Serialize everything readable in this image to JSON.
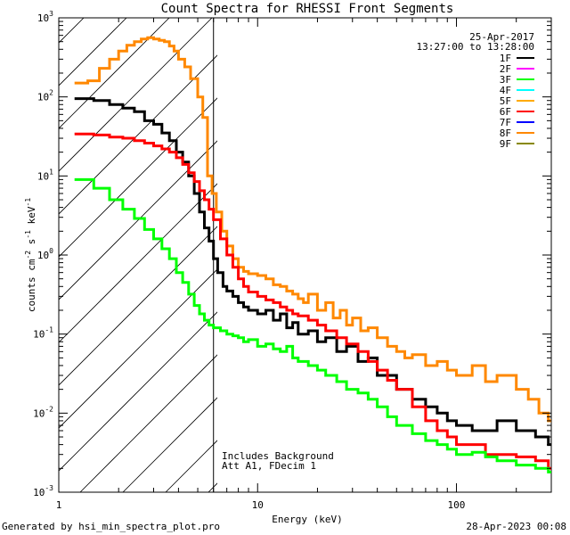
{
  "chart_data": {
    "type": "line",
    "title": "Count Spectra for RHESSI Front Segments",
    "xlabel": "Energy (keV)",
    "ylabel_main": "counts cm",
    "ylabel_parts": [
      "counts cm",
      "-2",
      " s",
      "-1",
      " keV",
      "-1"
    ],
    "xscale": "log",
    "yscale": "log",
    "xlim": [
      1,
      300
    ],
    "ylim": [
      0.001,
      1000
    ],
    "x_ticks": [
      {
        "value": 10,
        "label": "10"
      },
      {
        "value": 100,
        "label": "100"
      },
      {
        "value": 1,
        "label": "1"
      }
    ],
    "y_ticks": [
      {
        "value": 1000,
        "base": "10",
        "exp": "3"
      },
      {
        "value": 100,
        "base": "10",
        "exp": "2"
      },
      {
        "value": 10,
        "base": "10",
        "exp": "1"
      },
      {
        "value": 1,
        "base": "10",
        "exp": "0"
      },
      {
        "value": 0.1,
        "base": "10",
        "exp": "-1"
      },
      {
        "value": 0.01,
        "base": "10",
        "exp": "-2"
      },
      {
        "value": 0.001,
        "base": "10",
        "exp": "-3"
      }
    ],
    "attenuator_edge_kev": 6,
    "legend": {
      "date": "25-Apr-2017",
      "time_range": "13:27:00 to 13:28:00",
      "entries": [
        {
          "label": "1F",
          "color": "#000000"
        },
        {
          "label": "2F",
          "color": "#ff00ff"
        },
        {
          "label": "3F",
          "color": "#00ff00"
        },
        {
          "label": "4F",
          "color": "#00ffff"
        },
        {
          "label": "5F",
          "color": "#ffaa00"
        },
        {
          "label": "6F",
          "color": "#ff0000"
        },
        {
          "label": "7F",
          "color": "#0000ff"
        },
        {
          "label": "8F",
          "color": "#ff8800"
        },
        {
          "label": "9F",
          "color": "#888800"
        }
      ]
    },
    "annotations": [
      "Includes Background",
      "Att A1, FDecim 1"
    ],
    "series": [
      {
        "name": "8F",
        "color": "#ff8800",
        "x": [
          1.2,
          1.4,
          1.6,
          1.8,
          2.0,
          2.2,
          2.4,
          2.6,
          2.8,
          3.0,
          3.2,
          3.4,
          3.6,
          3.8,
          4.0,
          4.3,
          4.6,
          5.0,
          5.3,
          5.6,
          5.9,
          6.2,
          6.6,
          7.0,
          7.5,
          8.0,
          8.5,
          9,
          10,
          11,
          12,
          13,
          14,
          15,
          16,
          17,
          18,
          20,
          22,
          24,
          26,
          28,
          30,
          33,
          36,
          40,
          45,
          50,
          55,
          60,
          70,
          80,
          90,
          100,
          120,
          140,
          160,
          180,
          200,
          230,
          260,
          290
        ],
        "y": [
          150,
          160,
          230,
          300,
          380,
          450,
          500,
          540,
          560,
          540,
          520,
          500,
          440,
          380,
          300,
          240,
          170,
          100,
          55,
          10,
          6,
          3.5,
          2.0,
          1.3,
          0.9,
          0.7,
          0.62,
          0.58,
          0.55,
          0.5,
          0.42,
          0.4,
          0.35,
          0.32,
          0.28,
          0.25,
          0.32,
          0.2,
          0.25,
          0.16,
          0.2,
          0.13,
          0.16,
          0.11,
          0.12,
          0.09,
          0.07,
          0.06,
          0.05,
          0.055,
          0.04,
          0.045,
          0.035,
          0.03,
          0.04,
          0.025,
          0.03,
          0.03,
          0.02,
          0.015,
          0.01,
          0.008
        ]
      },
      {
        "name": "1F",
        "color": "#000000",
        "x": [
          1.2,
          1.5,
          1.8,
          2.1,
          2.4,
          2.7,
          3.0,
          3.3,
          3.6,
          3.9,
          4.2,
          4.5,
          4.8,
          5.1,
          5.4,
          5.7,
          6.0,
          6.3,
          6.7,
          7.0,
          7.5,
          8.0,
          8.5,
          9,
          10,
          11,
          12,
          13,
          14,
          15,
          16,
          18,
          20,
          22,
          25,
          28,
          32,
          36,
          40,
          45,
          50,
          60,
          70,
          80,
          90,
          100,
          120,
          140,
          160,
          200,
          250,
          290
        ],
        "y": [
          95,
          90,
          80,
          72,
          65,
          50,
          45,
          35,
          28,
          20,
          15,
          10,
          6,
          3.5,
          2.2,
          1.5,
          0.9,
          0.6,
          0.4,
          0.35,
          0.3,
          0.25,
          0.22,
          0.2,
          0.18,
          0.2,
          0.15,
          0.18,
          0.12,
          0.14,
          0.1,
          0.11,
          0.08,
          0.09,
          0.06,
          0.07,
          0.045,
          0.05,
          0.03,
          0.03,
          0.02,
          0.015,
          0.012,
          0.01,
          0.008,
          0.007,
          0.006,
          0.006,
          0.008,
          0.006,
          0.005,
          0.004
        ]
      },
      {
        "name": "6F",
        "color": "#ff0000",
        "x": [
          1.2,
          1.5,
          1.8,
          2.1,
          2.4,
          2.7,
          3.0,
          3.3,
          3.6,
          3.9,
          4.2,
          4.5,
          4.8,
          5.1,
          5.4,
          5.7,
          6.0,
          6.5,
          7.0,
          7.5,
          8.0,
          8.5,
          9,
          10,
          11,
          12,
          13,
          14,
          15,
          16,
          18,
          20,
          22,
          25,
          28,
          32,
          36,
          40,
          45,
          50,
          60,
          70,
          80,
          90,
          100,
          120,
          140,
          160,
          200,
          250,
          290
        ],
        "y": [
          34,
          33,
          31,
          30,
          28,
          26,
          24,
          22,
          20,
          17,
          14,
          11,
          8.5,
          6.5,
          5,
          3.8,
          2.8,
          1.6,
          1.0,
          0.7,
          0.5,
          0.4,
          0.34,
          0.3,
          0.27,
          0.25,
          0.22,
          0.2,
          0.18,
          0.17,
          0.15,
          0.13,
          0.11,
          0.09,
          0.075,
          0.06,
          0.045,
          0.035,
          0.026,
          0.02,
          0.012,
          0.008,
          0.006,
          0.005,
          0.004,
          0.004,
          0.003,
          0.003,
          0.0028,
          0.0025,
          0.002
        ]
      },
      {
        "name": "3F",
        "color": "#00ff00",
        "x": [
          1.2,
          1.5,
          1.8,
          2.1,
          2.4,
          2.7,
          3.0,
          3.3,
          3.6,
          3.9,
          4.2,
          4.5,
          4.8,
          5.1,
          5.4,
          5.7,
          6.0,
          6.5,
          7.0,
          7.5,
          8.0,
          8.5,
          9,
          10,
          11,
          12,
          13,
          14,
          15,
          16,
          18,
          20,
          22,
          25,
          28,
          32,
          36,
          40,
          45,
          50,
          60,
          70,
          80,
          90,
          100,
          120,
          140,
          160,
          200,
          250,
          290
        ],
        "y": [
          9,
          7,
          5,
          3.8,
          2.9,
          2.1,
          1.6,
          1.2,
          0.9,
          0.6,
          0.45,
          0.32,
          0.23,
          0.18,
          0.15,
          0.13,
          0.12,
          0.11,
          0.1,
          0.095,
          0.09,
          0.08,
          0.085,
          0.07,
          0.075,
          0.065,
          0.06,
          0.07,
          0.05,
          0.045,
          0.04,
          0.035,
          0.03,
          0.025,
          0.02,
          0.018,
          0.015,
          0.012,
          0.009,
          0.007,
          0.0055,
          0.0045,
          0.004,
          0.0035,
          0.003,
          0.0032,
          0.0028,
          0.0025,
          0.0022,
          0.002,
          0.0018
        ]
      }
    ]
  },
  "footer": {
    "generated": "Generated by hsi_min_spectra_plot.pro",
    "timestamp": "28-Apr-2023 00:08"
  }
}
